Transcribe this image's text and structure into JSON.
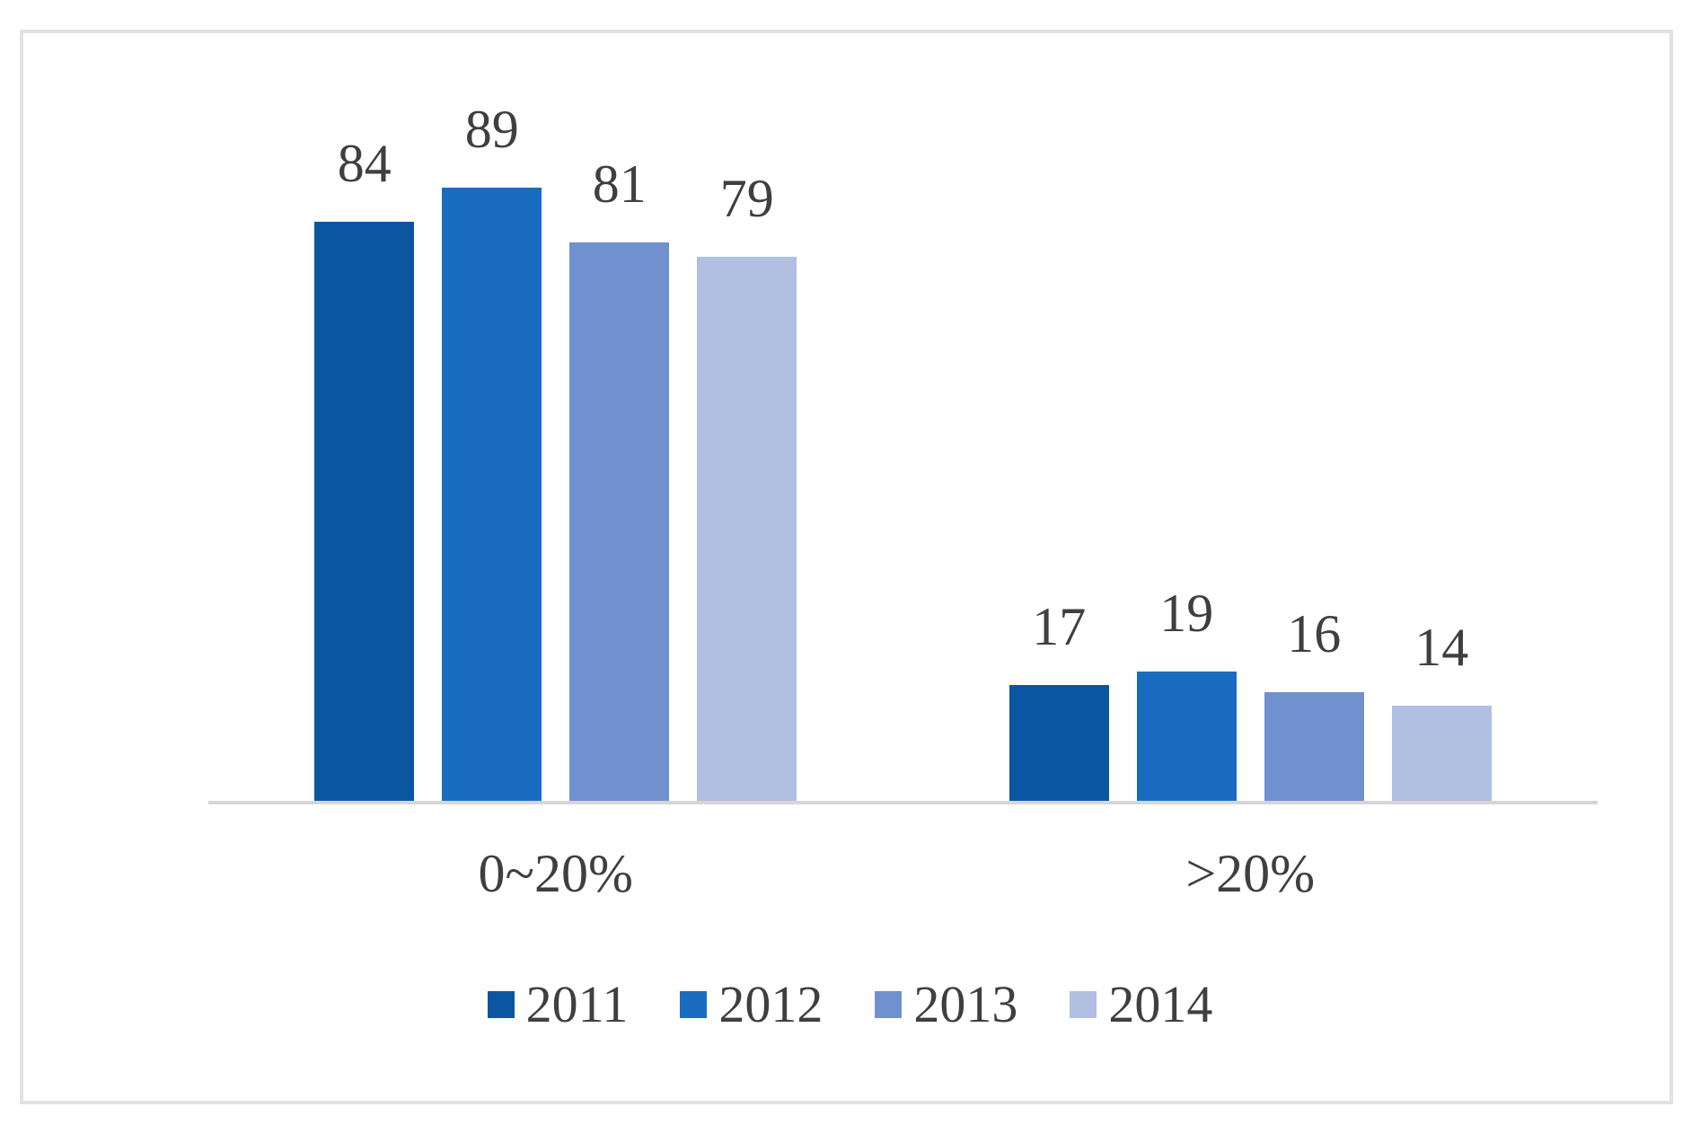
{
  "chart_data": {
    "type": "bar",
    "categories": [
      "0~20%",
      ">20%"
    ],
    "series": [
      {
        "name": "2011",
        "color": "#0b56a0",
        "values": [
          84,
          17
        ]
      },
      {
        "name": "2012",
        "color": "#1a6cc0",
        "values": [
          89,
          19
        ]
      },
      {
        "name": "2013",
        "color": "#7090ce",
        "values": [
          81,
          16
        ]
      },
      {
        "name": "2014",
        "color": "#b0bfe2",
        "values": [
          79,
          14
        ]
      }
    ],
    "title": "",
    "xlabel": "",
    "ylabel": "",
    "ylim": [
      0,
      100
    ],
    "yticks": [
      0,
      20,
      40,
      60,
      80,
      100
    ],
    "grid": false,
    "data_labels": true,
    "legend_position": "bottom",
    "colors": {
      "axis_line": "#d6d6d6",
      "frame_border": "#e2e2e2",
      "text": "#3f3f3f",
      "background": "#ffffff"
    }
  }
}
